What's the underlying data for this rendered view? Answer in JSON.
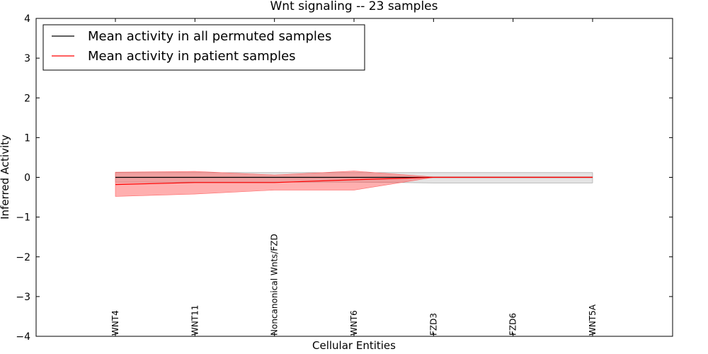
{
  "chart_data": {
    "type": "line",
    "title": "Wnt signaling -- 23 samples",
    "xlabel": "Cellular Entities",
    "ylabel": "Inferred Activity",
    "ylim": [
      -4,
      4
    ],
    "yticks": [
      -4,
      -3,
      -2,
      -1,
      0,
      1,
      2,
      3,
      4
    ],
    "ytick_labels": [
      "−4",
      "−3",
      "−2",
      "−1",
      "0",
      "1",
      "2",
      "3",
      "4"
    ],
    "categories": [
      "WNT4",
      "WNT11",
      "Noncanonical Wnts/FZD",
      "WNT6",
      "FZD3",
      "FZD6",
      "WNT5A"
    ],
    "legend_position": "top-left",
    "grid": false,
    "series": [
      {
        "name": "Mean activity in all permuted samples",
        "color": "#000000",
        "band_color": "#bbbbbb",
        "values": [
          0.0,
          0.0,
          0.0,
          0.0,
          0.0,
          0.0,
          0.0
        ],
        "upper": [
          0.12,
          0.12,
          0.12,
          0.12,
          0.12,
          0.12,
          0.12
        ],
        "lower": [
          -0.12,
          -0.12,
          -0.12,
          -0.12,
          -0.14,
          -0.14,
          -0.14
        ]
      },
      {
        "name": "Mean activity in patient samples",
        "color": "#ff0000",
        "band_color": "#ff4d4d",
        "values": [
          -0.18,
          -0.13,
          -0.13,
          -0.06,
          0.0,
          0.0,
          0.0
        ],
        "upper": [
          0.13,
          0.15,
          0.06,
          0.16,
          0.01,
          0.01,
          0.01
        ],
        "lower": [
          -0.48,
          -0.42,
          -0.32,
          -0.32,
          0.0,
          0.0,
          0.0
        ]
      }
    ]
  }
}
